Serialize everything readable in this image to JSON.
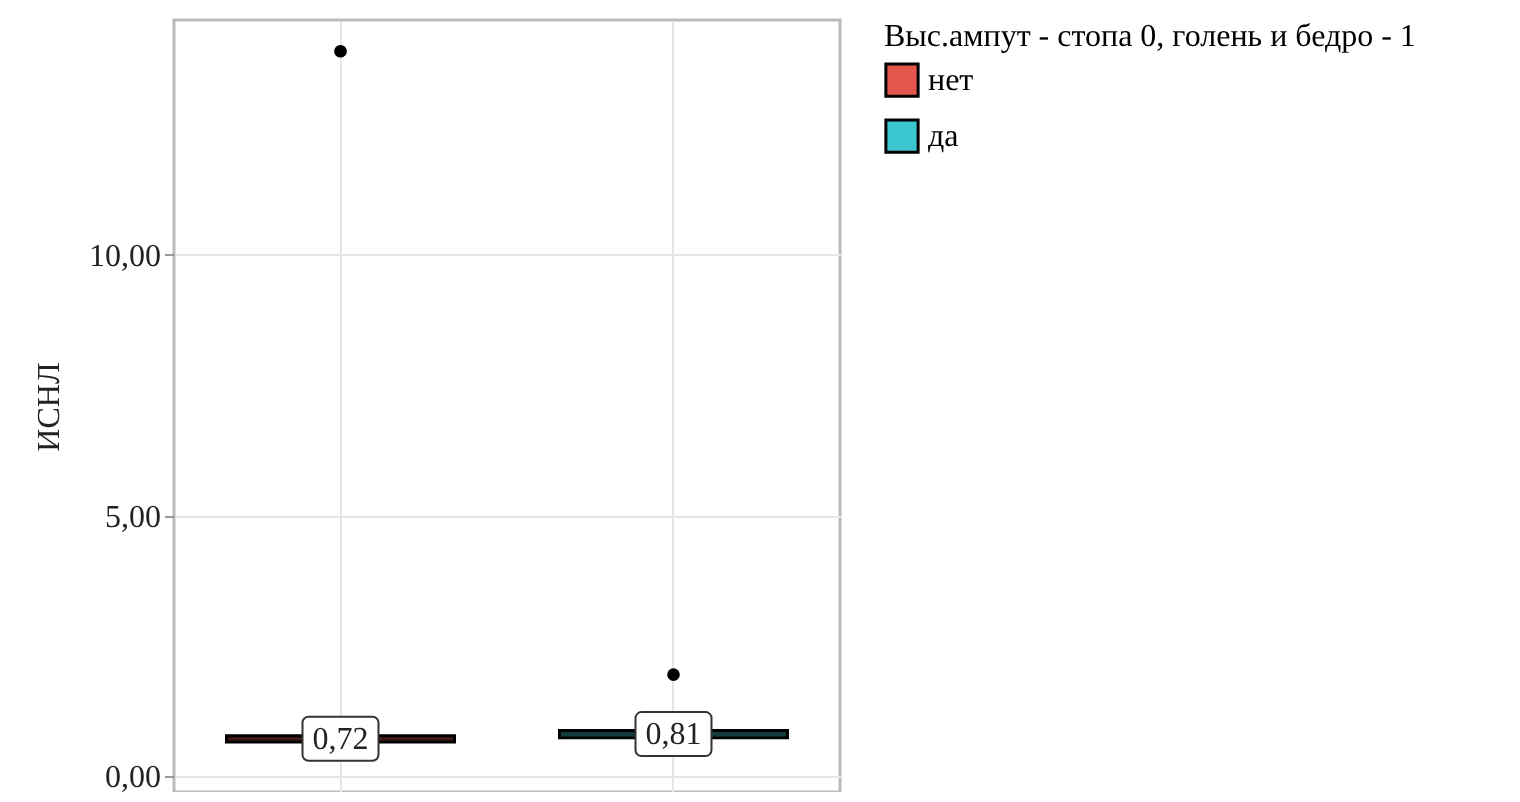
{
  "chart_data": {
    "type": "box",
    "ylabel": "ИСНЛ",
    "legend_title": "Выс.ампут - стопа 0, голень и бедро - 1",
    "categories": [
      null,
      null
    ],
    "series": [
      {
        "name": "нет",
        "color": "#e4574c",
        "boxes": [
          {
            "q1": 0.66,
            "median": 0.72,
            "q3": 0.78,
            "outliers": [
              13.9
            ]
          },
          null
        ],
        "value_labels": [
          "0,72",
          null
        ]
      },
      {
        "name": "да",
        "color": "#3cc6d0",
        "boxes": [
          null,
          {
            "q1": 0.74,
            "median": 0.81,
            "q3": 0.88,
            "outliers": [
              1.95
            ]
          }
        ],
        "value_labels": [
          null,
          "0,81"
        ]
      }
    ],
    "ylim": [
      -0.3,
      14.5
    ],
    "yticks": [
      {
        "value": 0,
        "label": "0,00"
      },
      {
        "value": 5,
        "label": "5,00"
      },
      {
        "value": 10,
        "label": "10,00"
      }
    ],
    "grid": true,
    "legend": "right",
    "tick_labels": "y"
  }
}
